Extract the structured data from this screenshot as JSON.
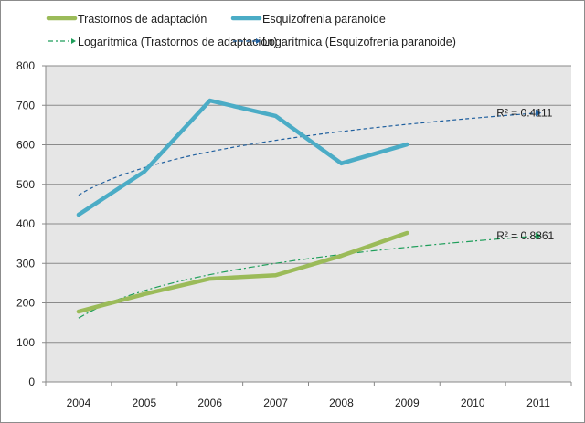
{
  "chart_data": {
    "type": "line",
    "categories": [
      "2004",
      "2005",
      "2006",
      "2007",
      "2008",
      "2009",
      "2010",
      "2011"
    ],
    "ylim": [
      0,
      800
    ],
    "yticks": [
      "0",
      "100",
      "200",
      "300",
      "400",
      "500",
      "600",
      "700",
      "800"
    ],
    "grid": true,
    "legend_placement": "top",
    "series": [
      {
        "name": "Trastornos de adaptación",
        "values": [
          178,
          222,
          261,
          270,
          319,
          377,
          null,
          null
        ],
        "color": "#9bbb59"
      },
      {
        "name": "Esquizofrenia paranoide",
        "values": [
          423,
          532,
          712,
          673,
          553,
          601,
          null,
          null
        ],
        "color": "#4bacc6"
      }
    ],
    "trendlines": [
      {
        "name": "Logarítmica (Trastornos de adaptación)",
        "series": 0,
        "type": "logarithmic",
        "r2_label": "R² = 0.8861",
        "color": "#1e9e5a",
        "dash": "dash-dot"
      },
      {
        "name": "Logarítmica (Esquizofrenia paranoide)",
        "series": 1,
        "type": "logarithmic",
        "r2_label": "R² = 0.4111",
        "color": "#1f5f9e",
        "dash": "dashed"
      }
    ],
    "plot_background": "#e6e6e6"
  }
}
